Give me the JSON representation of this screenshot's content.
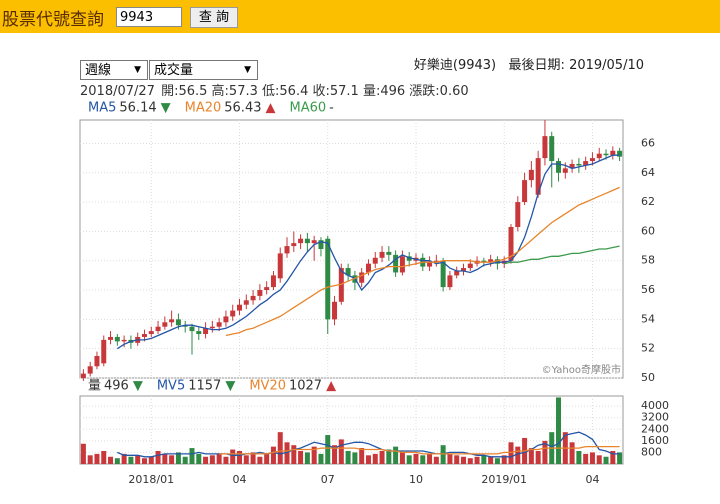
{
  "header": {
    "title": "股票代號查詢",
    "input": "9943",
    "button": "查 詢"
  },
  "controls": {
    "period": "週線",
    "indicator": "成交量"
  },
  "stock": {
    "name": "好樂迪(9943)",
    "last_date_label": "最後日期:",
    "last_date": "2019/05/10"
  },
  "quote": [
    "2018/07/27",
    "開:56.5",
    "高:57.3",
    "低:56.4",
    "收:57.1",
    "量:496",
    "漲跌:0.60"
  ],
  "chart_data": [
    {
      "type": "candlestick",
      "watermark": "©Yahoo奇摩股市",
      "up_color": "#c8373a",
      "down_color": "#2f8a45",
      "grid": true,
      "ylim": [
        50,
        67.6
      ],
      "yticks": [
        50,
        52,
        54,
        56,
        58,
        60,
        62,
        64,
        66
      ],
      "open": [
        50.0,
        50.3,
        50.8,
        51.0,
        52.6,
        52.8,
        52.5,
        52.6,
        52.4,
        52.8,
        53.0,
        53.2,
        53.5,
        53.8,
        54.0,
        53.6,
        53.5,
        53.2,
        53.0,
        53.4,
        53.5,
        53.8,
        54.2,
        54.6,
        55.0,
        55.3,
        55.6,
        56.0,
        56.2,
        56.8,
        58.5,
        59.0,
        59.2,
        59.5,
        59.2,
        59.4,
        59.5,
        54.0,
        55.2,
        57.5,
        57.0,
        56.5,
        57.2,
        57.8,
        58.2,
        58.6,
        58.4,
        57.2,
        58.3,
        58.0,
        58.2,
        57.6,
        57.9,
        58.0,
        56.2,
        57.0,
        57.3,
        57.5,
        57.8,
        58.0,
        57.9,
        58.1,
        57.8,
        58.0,
        60.3,
        62.0,
        63.5,
        62.5,
        65.0,
        66.5,
        64.8,
        64.0,
        64.3,
        64.6,
        64.5,
        64.8,
        65.0,
        65.3,
        65.2,
        65.5
      ],
      "high": [
        50.6,
        51.1,
        51.8,
        52.9,
        53.2,
        53.0,
        52.9,
        52.9,
        53.1,
        53.3,
        53.5,
        53.9,
        54.2,
        54.6,
        54.4,
        53.9,
        53.7,
        53.5,
        53.8,
        53.9,
        54.1,
        54.6,
        55.0,
        55.4,
        55.7,
        56.0,
        56.4,
        56.6,
        57.3,
        58.9,
        59.6,
        60.0,
        59.8,
        59.9,
        59.7,
        59.6,
        59.7,
        55.6,
        57.8,
        57.8,
        57.3,
        57.5,
        58.1,
        58.6,
        59.0,
        59.0,
        58.7,
        58.7,
        58.6,
        58.5,
        58.5,
        58.3,
        58.4,
        58.2,
        57.3,
        57.6,
        57.8,
        58.1,
        58.3,
        58.2,
        58.4,
        58.3,
        58.3,
        60.5,
        62.4,
        64.0,
        64.8,
        65.5,
        67.6,
        66.8,
        65.0,
        64.7,
        64.9,
        65.0,
        65.1,
        65.4,
        65.7,
        65.6,
        65.8,
        65.7
      ],
      "low": [
        49.8,
        50.1,
        50.6,
        50.8,
        52.3,
        52.2,
        52.1,
        52.0,
        52.2,
        52.5,
        52.8,
        53.0,
        53.3,
        53.5,
        53.3,
        53.1,
        51.6,
        52.6,
        52.7,
        53.1,
        53.2,
        53.5,
        53.9,
        54.3,
        54.7,
        55.0,
        55.3,
        55.7,
        56.0,
        56.5,
        58.2,
        58.6,
        58.8,
        58.6,
        58.0,
        58.3,
        53.0,
        53.6,
        55.0,
        56.6,
        56.0,
        56.2,
        57.0,
        57.5,
        57.9,
        58.0,
        56.9,
        57.0,
        57.6,
        57.7,
        57.3,
        57.3,
        57.6,
        55.9,
        56.0,
        56.8,
        57.0,
        57.3,
        57.6,
        57.6,
        57.6,
        57.4,
        57.5,
        57.8,
        60.0,
        61.8,
        63.0,
        62.3,
        64.5,
        63.0,
        63.4,
        63.6,
        64.0,
        64.0,
        64.2,
        64.5,
        64.8,
        64.9,
        64.9,
        64.8
      ],
      "close": [
        50.3,
        50.8,
        51.5,
        52.6,
        52.8,
        52.5,
        52.6,
        52.4,
        52.8,
        53.0,
        53.2,
        53.5,
        53.8,
        54.0,
        53.6,
        53.5,
        53.2,
        53.0,
        53.4,
        53.5,
        53.8,
        54.2,
        54.6,
        55.0,
        55.3,
        55.6,
        56.0,
        56.2,
        57.0,
        58.5,
        59.0,
        59.2,
        59.5,
        59.2,
        59.4,
        58.8,
        54.0,
        55.2,
        57.5,
        57.0,
        56.5,
        57.2,
        57.8,
        58.2,
        58.6,
        58.4,
        57.2,
        58.3,
        58.0,
        58.2,
        57.6,
        57.9,
        58.0,
        56.2,
        57.0,
        57.3,
        57.5,
        57.8,
        58.0,
        57.9,
        58.1,
        57.8,
        58.0,
        60.3,
        62.0,
        63.5,
        64.2,
        65.0,
        66.5,
        64.8,
        64.0,
        64.3,
        64.6,
        64.5,
        64.8,
        65.0,
        65.3,
        65.2,
        65.5,
        65.1
      ],
      "series": [
        {
          "name": "MA5",
          "color": "#2456a8",
          "last": 56.14,
          "trend": "▼",
          "trend_color": "#2f8a45",
          "values": [
            null,
            null,
            null,
            null,
            null,
            52.0,
            52.3,
            52.5,
            52.6,
            52.6,
            52.7,
            52.9,
            53.1,
            53.3,
            53.5,
            53.6,
            53.6,
            53.5,
            53.4,
            53.3,
            53.3,
            53.4,
            53.6,
            53.9,
            54.2,
            54.6,
            55.0,
            55.3,
            55.7,
            56.0,
            56.6,
            57.3,
            58.0,
            58.6,
            59.1,
            59.3,
            59.2,
            58.2,
            57.3,
            57.0,
            56.8,
            56.0,
            56.5,
            57.2,
            57.4,
            57.7,
            58.1,
            58.4,
            58.2,
            58.1,
            58.0,
            58.0,
            57.8,
            57.9,
            57.5,
            57.3,
            57.3,
            57.2,
            57.4,
            57.7,
            57.8,
            57.9,
            57.9,
            58.0,
            58.6,
            59.6,
            61.0,
            62.6,
            63.9,
            64.6,
            64.6,
            64.5,
            64.3,
            64.4,
            64.5,
            64.6,
            64.8,
            65.0,
            65.2,
            65.2
          ]
        },
        {
          "name": "MA20",
          "color": "#e8852c",
          "last": 56.43,
          "trend": "▲",
          "trend_color": "#c8373a",
          "values": [
            null,
            null,
            null,
            null,
            null,
            null,
            null,
            null,
            null,
            null,
            null,
            null,
            null,
            null,
            null,
            null,
            null,
            null,
            null,
            null,
            null,
            52.9,
            53.0,
            53.1,
            53.3,
            53.4,
            53.6,
            53.8,
            54.0,
            54.2,
            54.5,
            54.8,
            55.1,
            55.4,
            55.7,
            56.0,
            56.2,
            56.3,
            56.4,
            56.6,
            56.8,
            57.0,
            57.2,
            57.4,
            57.5,
            57.6,
            57.6,
            57.6,
            57.7,
            57.8,
            57.9,
            57.9,
            57.9,
            58.0,
            58.0,
            58.0,
            58.0,
            58.0,
            57.9,
            57.9,
            57.9,
            58.0,
            58.1,
            58.3,
            58.6,
            59.0,
            59.4,
            59.8,
            60.2,
            60.6,
            60.9,
            61.2,
            61.5,
            61.8,
            62.0,
            62.2,
            62.4,
            62.6,
            62.8,
            63.0
          ]
        },
        {
          "name": "MA60",
          "color": "#3c9a4c",
          "last": "-",
          "values": [
            null,
            null,
            null,
            null,
            null,
            null,
            null,
            null,
            null,
            null,
            null,
            null,
            null,
            null,
            null,
            null,
            null,
            null,
            null,
            null,
            null,
            null,
            null,
            null,
            null,
            null,
            null,
            null,
            null,
            null,
            null,
            null,
            null,
            null,
            null,
            null,
            null,
            null,
            null,
            null,
            null,
            null,
            null,
            null,
            null,
            null,
            null,
            null,
            null,
            null,
            null,
            null,
            null,
            null,
            null,
            null,
            null,
            null,
            null,
            null,
            null,
            null,
            57.8,
            57.9,
            57.9,
            58.0,
            58.1,
            58.1,
            58.2,
            58.3,
            58.3,
            58.4,
            58.5,
            58.5,
            58.6,
            58.7,
            58.8,
            58.8,
            58.9,
            59.0
          ]
        }
      ]
    },
    {
      "type": "bar",
      "name": "量",
      "last": 496,
      "trend": "▼",
      "trend_color": "#2f8a45",
      "grid": true,
      "ylim": [
        0,
        4700
      ],
      "yticks": [
        800,
        1600,
        2400,
        3200,
        4000
      ],
      "categories": [
        null,
        null,
        null,
        null,
        null,
        null,
        null,
        null,
        null,
        null,
        "2018/01",
        null,
        null,
        null,
        null,
        null,
        null,
        null,
        null,
        null,
        null,
        null,
        null,
        "04",
        null,
        null,
        null,
        null,
        null,
        null,
        null,
        null,
        null,
        null,
        null,
        null,
        "07",
        null,
        null,
        null,
        null,
        null,
        null,
        null,
        null,
        null,
        null,
        null,
        null,
        "10",
        null,
        null,
        null,
        null,
        null,
        null,
        null,
        null,
        null,
        null,
        null,
        null,
        "2019/01",
        null,
        null,
        null,
        null,
        null,
        null,
        null,
        null,
        null,
        null,
        null,
        null,
        "04",
        null,
        null,
        null,
        null
      ],
      "values": [
        1400,
        600,
        700,
        900,
        500,
        400,
        700,
        500,
        600,
        400,
        500,
        900,
        700,
        600,
        800,
        500,
        1100,
        700,
        500,
        600,
        700,
        500,
        1000,
        900,
        600,
        800,
        500,
        700,
        1200,
        2200,
        1500,
        1300,
        900,
        800,
        1200,
        700,
        2000,
        1300,
        1700,
        900,
        800,
        1100,
        600,
        700,
        900,
        1000,
        1200,
        800,
        600,
        700,
        600,
        700,
        500,
        1300,
        700,
        600,
        500,
        400,
        500,
        600,
        500,
        400,
        600,
        1500,
        1200,
        1800,
        1100,
        900,
        1600,
        2200,
        4600,
        2200,
        1500,
        900,
        700,
        800,
        600,
        500,
        900,
        800
      ],
      "series": [
        {
          "name": "MV5",
          "color": "#2456a8",
          "last": 1157,
          "trend": "▼",
          "trend_color": "#2f8a45",
          "values": [
            null,
            null,
            null,
            null,
            null,
            800,
            600,
            600,
            600,
            500,
            500,
            600,
            700,
            700,
            700,
            700,
            700,
            800,
            700,
            700,
            700,
            700,
            600,
            600,
            700,
            700,
            800,
            700,
            800,
            700,
            800,
            1000,
            1100,
            1300,
            1500,
            1400,
            1300,
            1100,
            1300,
            1400,
            1500,
            1500,
            1400,
            1200,
            1000,
            900,
            900,
            900,
            900,
            900,
            900,
            800,
            700,
            700,
            800,
            800,
            800,
            700,
            600,
            600,
            500,
            500,
            500,
            500,
            700,
            800,
            1000,
            1300,
            1400,
            1200,
            1400,
            2000,
            2100,
            2200,
            2000,
            1700,
            1000,
            900,
            700,
            700
          ]
        },
        {
          "name": "MV20",
          "color": "#e8852c",
          "last": 1027,
          "trend": "▲",
          "trend_color": "#c8373a",
          "values": [
            null,
            null,
            null,
            null,
            null,
            null,
            null,
            null,
            null,
            null,
            null,
            null,
            null,
            null,
            null,
            null,
            null,
            null,
            null,
            null,
            700,
            700,
            700,
            700,
            700,
            700,
            700,
            700,
            800,
            900,
            900,
            1000,
            1000,
            1000,
            1000,
            1100,
            1100,
            1100,
            1100,
            1100,
            1100,
            1000,
            1000,
            1000,
            1000,
            900,
            900,
            800,
            800,
            800,
            700,
            700,
            700,
            700,
            700,
            700,
            700,
            700,
            700,
            700,
            700,
            700,
            800,
            800,
            900,
            900,
            1000,
            1000,
            1100,
            1100,
            1100,
            1100,
            1100,
            1100,
            1200,
            1200,
            1200,
            1200,
            1200,
            1200
          ]
        }
      ]
    }
  ]
}
